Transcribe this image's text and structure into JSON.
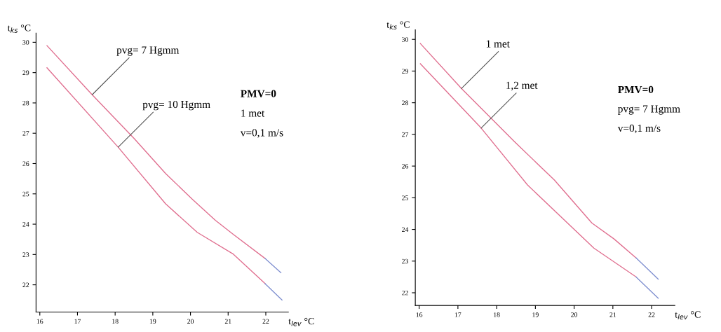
{
  "chart_data": [
    {
      "type": "line",
      "xlabel": "t$_{lev}$ °C",
      "ylabel": "t$_{ks}$ °C",
      "xlim": [
        15.9,
        22.6
      ],
      "ylim": [
        21.1,
        30.3
      ],
      "xticks": [
        16,
        17,
        18,
        19,
        20,
        21,
        22
      ],
      "yticks": [
        22,
        23,
        24,
        25,
        26,
        27,
        28,
        29,
        30
      ],
      "grid": false,
      "legend": false,
      "series": [
        {
          "color": "#e07090",
          "x": [
            16.19,
            17.39,
            18.5,
            19.34,
            20.06,
            20.66,
            21.14,
            21.98
          ],
          "values": [
            29.89,
            28.27,
            26.83,
            25.67,
            24.81,
            24.13,
            23.66,
            22.87
          ]
        },
        {
          "color": "#8090d0",
          "x": [
            21.98,
            22.4
          ],
          "values": [
            22.87,
            22.4
          ]
        },
        {
          "color": "#e07090",
          "x": [
            16.19,
            18.08,
            19.34,
            20.18,
            21.14,
            21.98
          ],
          "values": [
            29.16,
            26.54,
            24.67,
            23.73,
            23.01,
            22.04
          ]
        },
        {
          "color": "#8090d0",
          "x": [
            21.98,
            22.43
          ],
          "values": [
            22.04,
            21.5
          ]
        }
      ],
      "annotations": [
        {
          "text": "pvg= 7 Hgmm",
          "x": 17.39,
          "y": 28.27
        },
        {
          "text": "pvg= 10 Hgmm",
          "x": 18.08,
          "y": 26.54
        },
        "PMV=0",
        "1 met",
        "v=0,1 m/s"
      ]
    },
    {
      "type": "line",
      "xlabel": "t$_{lev}$ °C",
      "ylabel": "t$_{ks}$ °C",
      "xlim": [
        15.9,
        22.6
      ],
      "ylim": [
        21.6,
        30.3
      ],
      "xticks": [
        16,
        17,
        18,
        19,
        20,
        21,
        22
      ],
      "yticks": [
        22,
        23,
        24,
        25,
        26,
        27,
        28,
        29,
        30
      ],
      "grid": false,
      "legend": false,
      "series": [
        {
          "color": "#e07090",
          "x": [
            16.03,
            17.09,
            18.46,
            19.49,
            20.46,
            21.03,
            21.6
          ],
          "values": [
            29.87,
            28.45,
            26.77,
            25.56,
            24.2,
            23.7,
            23.1
          ]
        },
        {
          "color": "#8090d0",
          "x": [
            21.6,
            22.17
          ],
          "values": [
            23.1,
            22.43
          ]
        },
        {
          "color": "#e07090",
          "x": [
            16.03,
            17.6,
            18.8,
            20.51,
            21.6
          ],
          "values": [
            29.23,
            27.2,
            25.4,
            23.41,
            22.5
          ]
        },
        {
          "color": "#8090d0",
          "x": [
            21.6,
            22.17
          ],
          "values": [
            22.5,
            21.83
          ]
        }
      ],
      "annotations": [
        {
          "text": "1 met",
          "x": 17.09,
          "y": 28.45
        },
        {
          "text": "1,2 met",
          "x": 17.6,
          "y": 27.2
        },
        "PMV=0",
        "pvg= 7 Hgmm",
        "v=0,1 m/s"
      ]
    }
  ]
}
